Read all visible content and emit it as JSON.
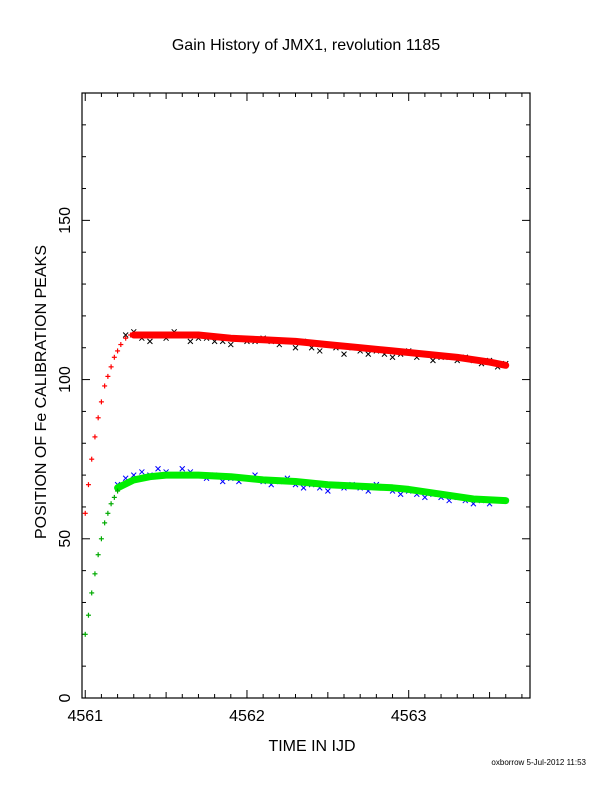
{
  "footer": "oxborrow  5-Jul-2012 11:53",
  "chart_data": {
    "type": "scatter",
    "title": "Gain History of JMX1, revolution 1185",
    "xlabel": "TIME IN IJD",
    "ylabel": "POSITION OF Fe CALIBRATION PEAKS",
    "xlim": [
      4560.98,
      4563.75
    ],
    "ylim": [
      0,
      190
    ],
    "xticks": [
      4561,
      4562,
      4563
    ],
    "xtick_labels": [
      "4561",
      "4562",
      "4563"
    ],
    "yticks": [
      0,
      50,
      100,
      150
    ],
    "ytick_labels": [
      "0",
      "50",
      "100",
      "150"
    ],
    "grid": false,
    "legend": "none",
    "colors": {
      "upper_points": "#000000",
      "upper_fit": "#ff0000",
      "upper_rise": "#ff0000",
      "lower_points": "#0000ff",
      "lower_fit": "#00ee00",
      "lower_rise": "#00aa00"
    },
    "series": [
      {
        "marker": "x",
        "role": "upper_points",
        "x": [
          4561.25,
          4561.3,
          4561.35,
          4561.4,
          4561.45,
          4561.5,
          4561.55,
          4561.6,
          4561.65,
          4561.7,
          4561.75,
          4561.8,
          4561.85,
          4561.9,
          4561.95,
          4562.0,
          4562.05,
          4562.1,
          4562.15,
          4562.2,
          4562.25,
          4562.3,
          4562.35,
          4562.4,
          4562.45,
          4562.5,
          4562.55,
          4562.6,
          4562.65,
          4562.7,
          4562.75,
          4562.8,
          4562.85,
          4562.9,
          4562.95,
          4563.0,
          4563.05,
          4563.1,
          4563.15,
          4563.2,
          4563.25,
          4563.3,
          4563.35,
          4563.4,
          4563.45,
          4563.5,
          4563.55,
          4563.6
        ],
        "y": [
          114,
          115,
          113,
          112,
          114,
          113,
          115,
          114,
          112,
          113,
          113,
          112,
          112,
          111,
          113,
          112,
          112,
          113,
          112,
          111,
          112,
          110,
          112,
          110,
          109,
          111,
          110,
          108,
          110,
          109,
          108,
          109,
          108,
          107,
          108,
          109,
          107,
          108,
          106,
          107,
          107,
          106,
          107,
          106,
          105,
          106,
          104,
          105
        ]
      },
      {
        "marker": "line",
        "role": "upper_fit",
        "x": [
          4561.3,
          4561.5,
          4561.7,
          4561.9,
          4562.1,
          4562.3,
          4562.5,
          4562.7,
          4562.9,
          4563.1,
          4563.3,
          4563.5,
          4563.6
        ],
        "y": [
          114,
          114,
          114,
          113,
          112.5,
          112,
          111,
          110,
          109,
          108,
          107,
          105.5,
          104.5
        ]
      },
      {
        "marker": "+",
        "role": "upper_rise",
        "x": [
          4561.0,
          4561.02,
          4561.04,
          4561.06,
          4561.08,
          4561.1,
          4561.12,
          4561.14,
          4561.16,
          4561.18,
          4561.2,
          4561.22,
          4561.25,
          4561.28
        ],
        "y": [
          58,
          67,
          75,
          82,
          88,
          93,
          98,
          101,
          104,
          107,
          109,
          111,
          113,
          114
        ]
      },
      {
        "marker": "x",
        "role": "lower_points",
        "x": [
          4561.2,
          4561.25,
          4561.3,
          4561.35,
          4561.4,
          4561.45,
          4561.5,
          4561.55,
          4561.6,
          4561.65,
          4561.7,
          4561.75,
          4561.8,
          4561.85,
          4561.9,
          4561.95,
          4562.0,
          4562.05,
          4562.1,
          4562.15,
          4562.2,
          4562.25,
          4562.3,
          4562.35,
          4562.4,
          4562.45,
          4562.5,
          4562.55,
          4562.6,
          4562.65,
          4562.7,
          4562.75,
          4562.8,
          4562.85,
          4562.9,
          4562.95,
          4563.0,
          4563.05,
          4563.1,
          4563.15,
          4563.2,
          4563.25,
          4563.3,
          4563.35,
          4563.4,
          4563.45,
          4563.5,
          4563.55,
          4563.6
        ],
        "y": [
          67,
          69,
          70,
          71,
          70,
          72,
          71,
          70,
          72,
          71,
          70,
          69,
          70,
          68,
          69,
          68,
          69,
          70,
          68,
          67,
          68,
          69,
          67,
          66,
          67,
          66,
          65,
          67,
          66,
          67,
          66,
          65,
          67,
          66,
          65,
          64,
          65,
          64,
          63,
          64,
          63,
          62,
          63,
          62,
          61,
          62,
          61,
          62,
          62
        ]
      },
      {
        "marker": "line",
        "role": "lower_fit",
        "x": [
          4561.2,
          4561.3,
          4561.4,
          4561.5,
          4561.7,
          4561.9,
          4562.1,
          4562.3,
          4562.5,
          4562.7,
          4562.9,
          4563.0,
          4563.2,
          4563.4,
          4563.6
        ],
        "y": [
          66,
          68.5,
          69.5,
          70,
          70,
          69.5,
          68.5,
          68,
          67,
          66.5,
          66,
          65.5,
          64,
          62.5,
          62
        ]
      },
      {
        "marker": "+",
        "role": "lower_rise",
        "x": [
          4561.0,
          4561.02,
          4561.04,
          4561.06,
          4561.08,
          4561.1,
          4561.12,
          4561.14,
          4561.16,
          4561.18,
          4561.2
        ],
        "y": [
          20,
          26,
          33,
          39,
          45,
          50,
          55,
          58,
          61,
          63,
          65
        ]
      }
    ]
  }
}
